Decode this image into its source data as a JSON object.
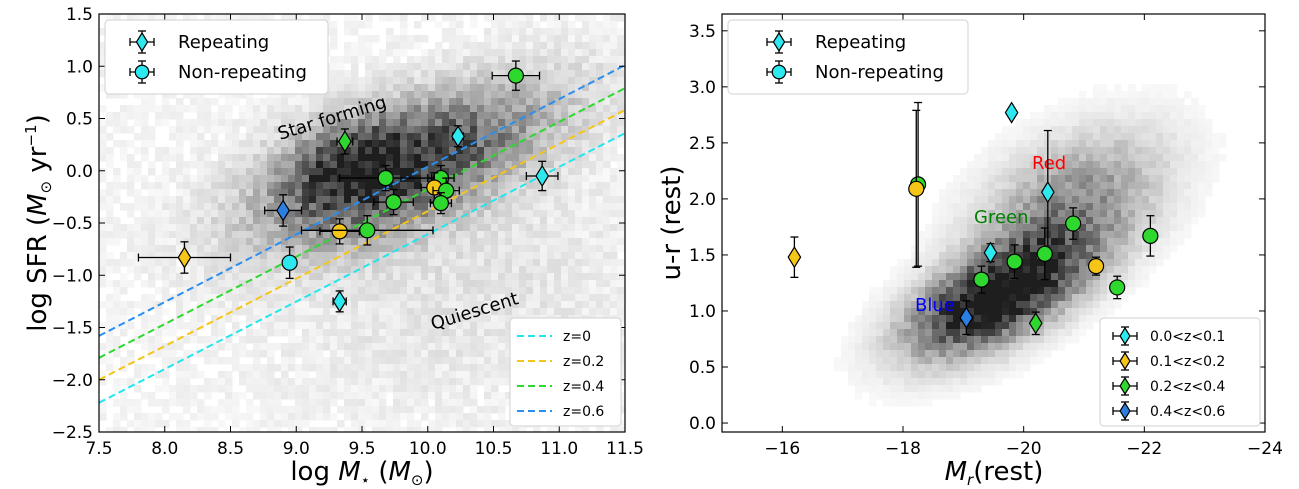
{
  "chart_data": [
    {
      "type": "scatter",
      "xlabel": "log M⋆ (M⊙)",
      "ylabel": "log SFR (M⊙ yr⁻¹)",
      "xlim": [
        7.5,
        11.5
      ],
      "ylim": [
        -2.5,
        1.5
      ],
      "xticks": [
        "7.5",
        "8.0",
        "8.5",
        "9.0",
        "9.5",
        "10.0",
        "10.5",
        "11.0",
        "11.5"
      ],
      "yticks": [
        "−2.5",
        "−2.0",
        "−1.5",
        "−1.0",
        "−0.5",
        "0.0",
        "0.5",
        "1.0",
        "1.5"
      ],
      "annotations": [
        "Star forming",
        "Quiescent"
      ],
      "legend": {
        "placement": "top-left",
        "entries": [
          "Repeating",
          "Non-repeating"
        ]
      },
      "lines_legend": {
        "placement": "bottom-right",
        "entries": [
          "z=0",
          "z=0.2",
          "z=0.4",
          "z=0.6"
        ]
      },
      "colors": {
        "z0": "#22e5ee",
        "z02": "#f5c518",
        "z04": "#2ed82e",
        "z06": "#2a8ef0",
        "cyan": "#2ee8f0",
        "yellow": "#f5c518",
        "green": "#2ed82e",
        "blue": "#2a7fe0"
      },
      "lines": [
        {
          "name": "z=0",
          "color_key": "z0",
          "x": [
            7.5,
            11.5
          ],
          "y": [
            -2.22,
            0.36
          ]
        },
        {
          "name": "z=0.2",
          "color_key": "z02",
          "x": [
            7.5,
            11.5
          ],
          "y": [
            -2.0,
            0.58
          ]
        },
        {
          "name": "z=0.4",
          "color_key": "z04",
          "x": [
            7.5,
            11.5
          ],
          "y": [
            -1.79,
            0.79
          ]
        },
        {
          "name": "z=0.6",
          "color_key": "z06",
          "x": [
            7.5,
            11.5
          ],
          "y": [
            -1.58,
            1.01
          ]
        }
      ],
      "points": [
        {
          "x": 10.67,
          "y": 0.91,
          "xerr": 0.18,
          "yerr": 0.14,
          "marker": "circle",
          "color_key": "green"
        },
        {
          "x": 9.37,
          "y": 0.28,
          "xerr": 0.06,
          "yerr": 0.12,
          "marker": "diamond",
          "color_key": "green"
        },
        {
          "x": 10.23,
          "y": 0.33,
          "xerr": 0.04,
          "yerr": 0.1,
          "marker": "diamond",
          "color_key": "cyan"
        },
        {
          "x": 10.87,
          "y": -0.05,
          "xerr": 0.12,
          "yerr": 0.14,
          "marker": "diamond",
          "color_key": "cyan"
        },
        {
          "x": 9.68,
          "y": -0.07,
          "xerr": 0.35,
          "yerr": 0.12,
          "marker": "circle",
          "color_key": "green"
        },
        {
          "x": 10.1,
          "y": -0.07,
          "xerr": 0.1,
          "yerr": 0.12,
          "marker": "circle",
          "color_key": "green"
        },
        {
          "x": 10.05,
          "y": -0.16,
          "xerr": 0.1,
          "yerr": 0.14,
          "marker": "circle",
          "color_key": "yellow"
        },
        {
          "x": 10.14,
          "y": -0.19,
          "xerr": 0.1,
          "yerr": 0.12,
          "marker": "circle",
          "color_key": "green"
        },
        {
          "x": 9.74,
          "y": -0.3,
          "xerr": 0.15,
          "yerr": 0.12,
          "marker": "circle",
          "color_key": "green"
        },
        {
          "x": 10.1,
          "y": -0.31,
          "xerr": 0.08,
          "yerr": 0.1,
          "marker": "circle",
          "color_key": "green"
        },
        {
          "x": 8.9,
          "y": -0.38,
          "xerr": 0.14,
          "yerr": 0.15,
          "marker": "diamond",
          "color_key": "blue"
        },
        {
          "x": 9.33,
          "y": -0.58,
          "xerr": 0.15,
          "yerr": 0.12,
          "marker": "circle",
          "color_key": "yellow"
        },
        {
          "x": 9.54,
          "y": -0.57,
          "xerr": 0.5,
          "yerr": 0.14,
          "marker": "circle",
          "color_key": "green"
        },
        {
          "x": 8.15,
          "y": -0.83,
          "xerr": 0.35,
          "yerr": 0.15,
          "marker": "diamond",
          "color_key": "yellow"
        },
        {
          "x": 8.95,
          "y": -0.88,
          "xerr": 0.05,
          "yerr": 0.15,
          "marker": "circle",
          "color_key": "cyan"
        },
        {
          "x": 9.33,
          "y": -1.25,
          "xerr": 0.05,
          "yerr": 0.1,
          "marker": "diamond",
          "color_key": "cyan"
        }
      ]
    },
    {
      "type": "scatter",
      "xlabel": "Mr(rest)",
      "ylabel": "u-r (rest)",
      "xlim": [
        -15,
        -24
      ],
      "ylim": [
        -0.08,
        3.65
      ],
      "xticks": [
        "−16",
        "−18",
        "−20",
        "−22",
        "−24"
      ],
      "yticks": [
        "0.0",
        "0.5",
        "1.0",
        "1.5",
        "2.0",
        "2.5",
        "3.0",
        "3.5"
      ],
      "annotations": [
        {
          "text": "Red",
          "color": "#ff0000"
        },
        {
          "text": "Green",
          "color": "#008000"
        },
        {
          "text": "Blue",
          "color": "#0000ff"
        }
      ],
      "legend": {
        "placement": "top-left",
        "entries": [
          "Repeating",
          "Non-repeating"
        ]
      },
      "z_legend": {
        "placement": "bottom-right",
        "entries": [
          "0.0<z<0.1",
          "0.1<z<0.2",
          "0.2<z<0.4",
          "0.4<z<0.6"
        ]
      },
      "points": [
        {
          "x": -19.8,
          "y": 2.77,
          "yerr": 0.0,
          "marker": "diamond",
          "color_key": "cyan"
        },
        {
          "x": -18.25,
          "y": 2.13,
          "yerr": 0.73,
          "marker": "circle",
          "color_key": "green"
        },
        {
          "x": -18.22,
          "y": 2.09,
          "yerr": 0.7,
          "marker": "circle",
          "color_key": "yellow"
        },
        {
          "x": -20.4,
          "y": 2.06,
          "yerr": 0.55,
          "marker": "diamond",
          "color_key": "cyan"
        },
        {
          "x": -20.82,
          "y": 1.78,
          "yerr": 0.14,
          "marker": "circle",
          "color_key": "green"
        },
        {
          "x": -22.1,
          "y": 1.67,
          "yerr": 0.18,
          "marker": "circle",
          "color_key": "green"
        },
        {
          "x": -19.45,
          "y": 1.52,
          "yerr": 0.08,
          "marker": "diamond",
          "color_key": "cyan"
        },
        {
          "x": -20.35,
          "y": 1.51,
          "yerr": 0.23,
          "marker": "circle",
          "color_key": "green"
        },
        {
          "x": -16.2,
          "y": 1.48,
          "yerr": 0.18,
          "marker": "diamond",
          "color_key": "yellow"
        },
        {
          "x": -19.85,
          "y": 1.44,
          "yerr": 0.15,
          "marker": "circle",
          "color_key": "green"
        },
        {
          "x": -21.2,
          "y": 1.4,
          "yerr": 0.08,
          "marker": "circle",
          "color_key": "yellow"
        },
        {
          "x": -19.3,
          "y": 1.28,
          "yerr": 0.12,
          "marker": "circle",
          "color_key": "green"
        },
        {
          "x": -21.55,
          "y": 1.21,
          "yerr": 0.1,
          "marker": "circle",
          "color_key": "green"
        },
        {
          "x": -19.05,
          "y": 0.94,
          "yerr": 0.15,
          "marker": "diamond",
          "color_key": "blue"
        },
        {
          "x": -20.2,
          "y": 0.89,
          "yerr": 0.1,
          "marker": "diamond",
          "color_key": "green"
        }
      ]
    }
  ]
}
